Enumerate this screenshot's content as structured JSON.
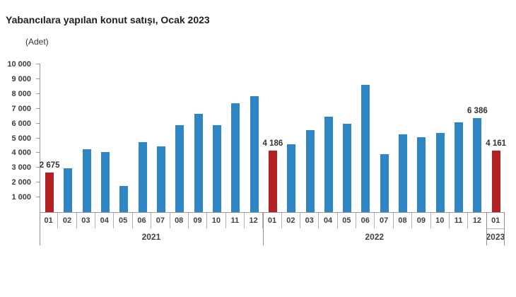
{
  "title": "Yabancılara yapılan konut satışı, Ocak 2023",
  "unit_label": "(Adet)",
  "colors": {
    "bar_blue": "#2e86c4",
    "bar_red": "#b22222",
    "axis_gray": "#9a9a9a",
    "text_dark": "#333333"
  },
  "chart_data": {
    "type": "bar",
    "title": "Yabancılara yapılan konut satışı, Ocak 2023",
    "ylabel": "(Adet)",
    "xlabel": "",
    "ylim": [
      0,
      10000
    ],
    "ytick_step": 1000,
    "ytick_labels": [
      "1 000",
      "2 000",
      "3 000",
      "4 000",
      "5 000",
      "6 000",
      "7 000",
      "8 000",
      "9 000",
      "10 000"
    ],
    "grid": false,
    "legend": "none",
    "years": [
      {
        "label": "2021",
        "span": 12,
        "boxed": false
      },
      {
        "label": "2022",
        "span": 12,
        "boxed": false
      },
      {
        "label": "2023",
        "span": 1,
        "boxed": true
      }
    ],
    "points": [
      {
        "year": "2021",
        "month": "01",
        "value": 2675,
        "value_label": "2 675",
        "highlight": true
      },
      {
        "year": "2021",
        "month": "02",
        "value": 2964,
        "highlight": false
      },
      {
        "year": "2021",
        "month": "03",
        "value": 4248,
        "highlight": false
      },
      {
        "year": "2021",
        "month": "04",
        "value": 4077,
        "highlight": false
      },
      {
        "year": "2021",
        "month": "05",
        "value": 1776,
        "highlight": false
      },
      {
        "year": "2021",
        "month": "06",
        "value": 4748,
        "highlight": false
      },
      {
        "year": "2021",
        "month": "07",
        "value": 4448,
        "highlight": false
      },
      {
        "year": "2021",
        "month": "08",
        "value": 5866,
        "highlight": false
      },
      {
        "year": "2021",
        "month": "09",
        "value": 6630,
        "highlight": false
      },
      {
        "year": "2021",
        "month": "10",
        "value": 5893,
        "highlight": false
      },
      {
        "year": "2021",
        "month": "11",
        "value": 7363,
        "highlight": false
      },
      {
        "year": "2021",
        "month": "12",
        "value": 7841,
        "highlight": false
      },
      {
        "year": "2022",
        "month": "01",
        "value": 4186,
        "value_label": "4 186",
        "highlight": true
      },
      {
        "year": "2022",
        "month": "02",
        "value": 4591,
        "highlight": false
      },
      {
        "year": "2022",
        "month": "03",
        "value": 5567,
        "highlight": false
      },
      {
        "year": "2022",
        "month": "04",
        "value": 6447,
        "highlight": false
      },
      {
        "year": "2022",
        "month": "05",
        "value": 5962,
        "highlight": false
      },
      {
        "year": "2022",
        "month": "06",
        "value": 8630,
        "highlight": false
      },
      {
        "year": "2022",
        "month": "07",
        "value": 3936,
        "highlight": false
      },
      {
        "year": "2022",
        "month": "08",
        "value": 5273,
        "highlight": false
      },
      {
        "year": "2022",
        "month": "09",
        "value": 5069,
        "highlight": false
      },
      {
        "year": "2022",
        "month": "10",
        "value": 5377,
        "highlight": false
      },
      {
        "year": "2022",
        "month": "11",
        "value": 6083,
        "highlight": false
      },
      {
        "year": "2022",
        "month": "12",
        "value": 6386,
        "value_label": "6 386",
        "highlight": false
      },
      {
        "year": "2023",
        "month": "01",
        "value": 4161,
        "value_label": "4 161",
        "highlight": true
      }
    ]
  }
}
